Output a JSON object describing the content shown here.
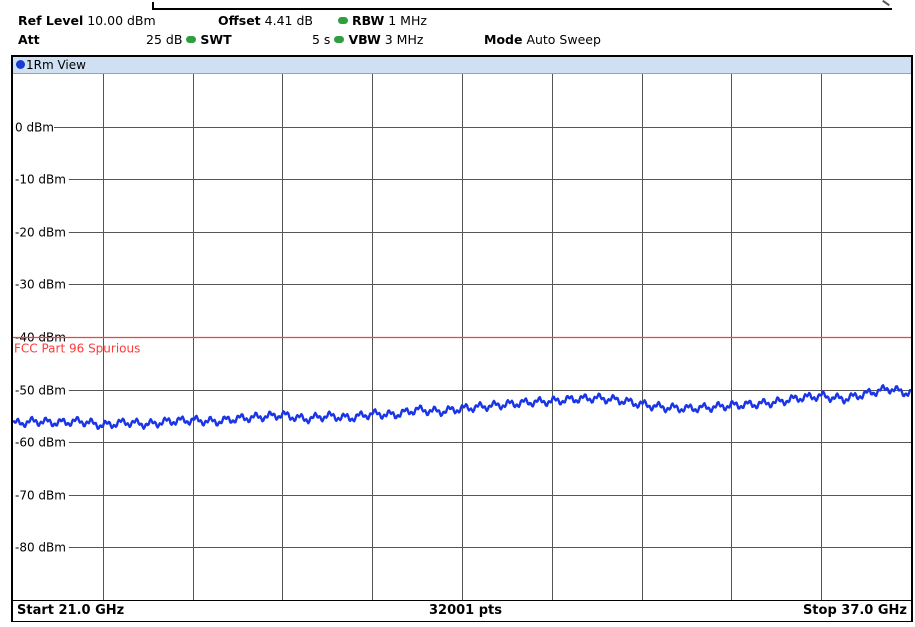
{
  "header": {
    "ref_level_label": "Ref Level",
    "ref_level_value": "10.00 dBm",
    "offset_label": "Offset",
    "offset_value": "4.41 dB",
    "rbw_label": "RBW",
    "rbw_value": "1 MHz",
    "att_label": "Att",
    "att_value": "25 dB",
    "swt_label": "SWT",
    "swt_value": "5 s",
    "vbw_label": "VBW",
    "vbw_value": "3 MHz",
    "mode_label": "Mode",
    "mode_value": "Auto Sweep",
    "indicator_color": "#2e9e3e"
  },
  "view": {
    "label": "1Rm View",
    "marker_color": "#1a3cd0"
  },
  "footer": {
    "start": "Start 21.0 GHz",
    "points": "32001 pts",
    "stop": "Stop 37.0 GHz"
  },
  "chart_data": {
    "type": "line",
    "title": "",
    "xlabel": "",
    "ylabel": "",
    "xlim": [
      21.0,
      37.0
    ],
    "ylim": [
      -90,
      10
    ],
    "y_ticks": [
      {
        "value": 0,
        "label": "0 dBm"
      },
      {
        "value": -10,
        "label": "-10 dBm"
      },
      {
        "value": -20,
        "label": "-20 dBm"
      },
      {
        "value": -30,
        "label": "-30 dBm"
      },
      {
        "value": -40,
        "label": "-40 dBm"
      },
      {
        "value": -50,
        "label": "-50 dBm"
      },
      {
        "value": -60,
        "label": "-60 dBm"
      },
      {
        "value": -70,
        "label": "-70 dBm"
      },
      {
        "value": -80,
        "label": "-80 dBm"
      }
    ],
    "x_divisions": 10,
    "grid": true,
    "limit_line": {
      "name": "FCC Part 96 Spurious",
      "value": -40,
      "color": "#ff3b3b"
    },
    "series": [
      {
        "color": "#1a35e6",
        "x": [
          21.0,
          21.4,
          21.8,
          22.2,
          22.6,
          23.0,
          23.4,
          23.8,
          24.2,
          24.6,
          25.0,
          25.4,
          25.8,
          26.2,
          26.6,
          27.0,
          27.4,
          27.8,
          28.2,
          28.6,
          29.0,
          29.4,
          29.8,
          30.2,
          30.6,
          31.0,
          31.4,
          31.8,
          32.2,
          32.6,
          33.0,
          33.4,
          33.8,
          34.2,
          34.6,
          35.0,
          35.4,
          35.8,
          36.2,
          36.6,
          37.0
        ],
        "y": [
          -56.5,
          -56.0,
          -56.3,
          -56.0,
          -56.8,
          -56.2,
          -56.6,
          -56.0,
          -55.8,
          -56.1,
          -55.5,
          -55.2,
          -54.8,
          -55.6,
          -55.0,
          -55.4,
          -54.6,
          -54.8,
          -53.8,
          -54.2,
          -53.6,
          -53.2,
          -52.8,
          -52.4,
          -52.2,
          -51.8,
          -51.6,
          -52.0,
          -52.8,
          -53.4,
          -53.6,
          -53.4,
          -53.0,
          -52.8,
          -52.4,
          -51.6,
          -51.2,
          -51.8,
          -50.8,
          -49.8,
          -50.8
        ]
      }
    ]
  }
}
